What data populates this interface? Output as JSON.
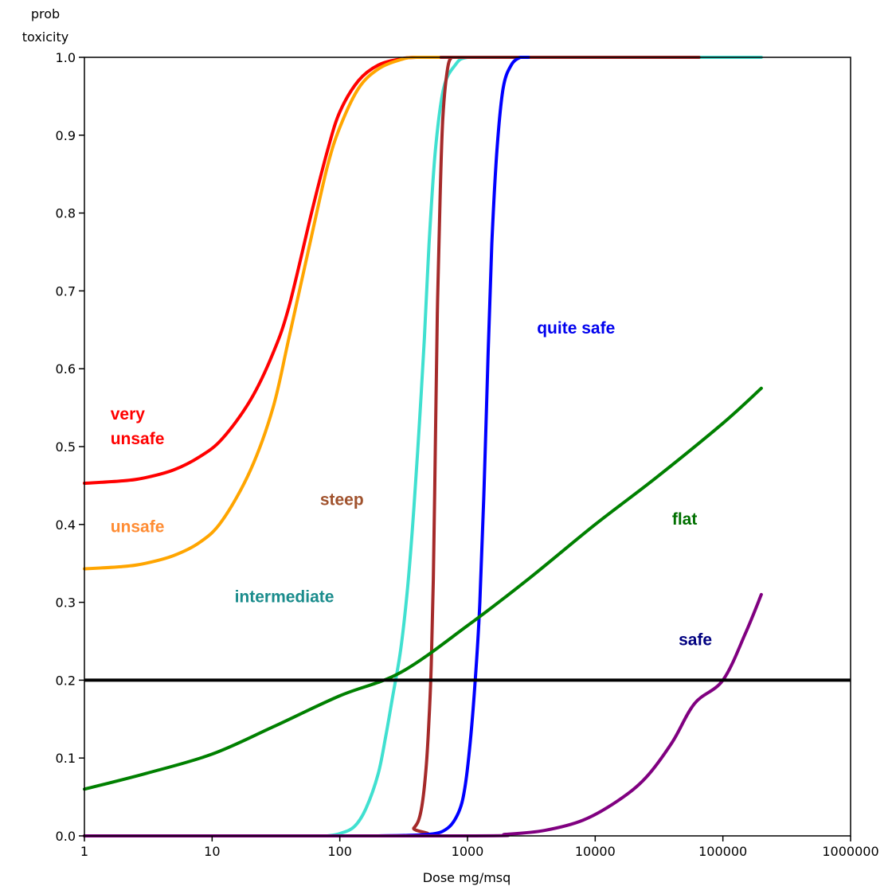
{
  "chart_data": {
    "type": "line",
    "xscale": "log",
    "xlim": [
      1,
      1000000
    ],
    "ylim": [
      0.0,
      1.0
    ],
    "xlabel": "Dose mg/msq",
    "ylabel": [
      "prob",
      "toxicity"
    ],
    "xticks": [
      {
        "value": 1,
        "label": "1"
      },
      {
        "value": 10,
        "label": "10"
      },
      {
        "value": 100,
        "label": "100"
      },
      {
        "value": 1000,
        "label": "1000"
      },
      {
        "value": 10000,
        "label": "10000"
      },
      {
        "value": 100000,
        "label": "100000"
      },
      {
        "value": 1000000,
        "label": "1000000"
      }
    ],
    "yticks": [
      {
        "value": 0.0,
        "label": "0.0"
      },
      {
        "value": 0.1,
        "label": "0.1"
      },
      {
        "value": 0.2,
        "label": "0.2"
      },
      {
        "value": 0.3,
        "label": "0.3"
      },
      {
        "value": 0.4,
        "label": "0.4"
      },
      {
        "value": 0.5,
        "label": "0.5"
      },
      {
        "value": 0.6,
        "label": "0.6"
      },
      {
        "value": 0.7,
        "label": "0.7"
      },
      {
        "value": 0.8,
        "label": "0.8"
      },
      {
        "value": 0.9,
        "label": "0.9"
      },
      {
        "value": 1.0,
        "label": "1.0"
      }
    ],
    "reference_line": {
      "y": 0.2,
      "color": "#000000"
    },
    "grid": false,
    "series": [
      {
        "name": "very unsafe",
        "label_lines": [
          "very",
          "unsafe"
        ],
        "color": "#ff0000",
        "label_color": "#ff0000",
        "label_at": {
          "x": 1.6,
          "y": 0.535
        },
        "points": [
          [
            1,
            0.453
          ],
          [
            2,
            0.456
          ],
          [
            3,
            0.46
          ],
          [
            5,
            0.47
          ],
          [
            8,
            0.487
          ],
          [
            12,
            0.51
          ],
          [
            20,
            0.56
          ],
          [
            30,
            0.62
          ],
          [
            40,
            0.68
          ],
          [
            60,
            0.8
          ],
          [
            80,
            0.88
          ],
          [
            100,
            0.93
          ],
          [
            140,
            0.97
          ],
          [
            200,
            0.99
          ],
          [
            300,
            0.998
          ],
          [
            400,
            1.0
          ],
          [
            700,
            1.0
          ],
          [
            70000,
            1.0
          ]
        ]
      },
      {
        "name": "unsafe",
        "label_lines": [
          "unsafe"
        ],
        "color": "#ffa500",
        "label_color": "#ff8c33",
        "label_at": {
          "x": 1.6,
          "y": 0.39
        },
        "points": [
          [
            1,
            0.343
          ],
          [
            2,
            0.346
          ],
          [
            3,
            0.35
          ],
          [
            5,
            0.36
          ],
          [
            8,
            0.377
          ],
          [
            12,
            0.405
          ],
          [
            20,
            0.47
          ],
          [
            30,
            0.55
          ],
          [
            40,
            0.64
          ],
          [
            60,
            0.77
          ],
          [
            80,
            0.86
          ],
          [
            100,
            0.91
          ],
          [
            140,
            0.96
          ],
          [
            200,
            0.985
          ],
          [
            300,
            0.997
          ],
          [
            400,
            1.0
          ],
          [
            1000,
            1.0
          ]
        ]
      },
      {
        "name": "intermediate",
        "label_lines": [
          "intermediate"
        ],
        "color": "#40e0d0",
        "label_color": "#1a8c8c",
        "label_at": {
          "x": 15,
          "y": 0.3
        },
        "points": [
          [
            80,
            0.0
          ],
          [
            100,
            0.003
          ],
          [
            130,
            0.012
          ],
          [
            160,
            0.035
          ],
          [
            200,
            0.08
          ],
          [
            230,
            0.13
          ],
          [
            260,
            0.18
          ],
          [
            300,
            0.24
          ],
          [
            340,
            0.32
          ],
          [
            380,
            0.42
          ],
          [
            420,
            0.53
          ],
          [
            460,
            0.64
          ],
          [
            500,
            0.76
          ],
          [
            560,
            0.88
          ],
          [
            650,
            0.96
          ],
          [
            800,
            0.99
          ],
          [
            1000,
            1.0
          ],
          [
            2000,
            1.0
          ],
          [
            200000,
            1.0
          ]
        ]
      },
      {
        "name": "steep",
        "label_lines": [
          "steep"
        ],
        "color": "#a52a2a",
        "label_color": "#a0522d",
        "label_at": {
          "x": 70,
          "y": 0.425
        },
        "points": [
          [
            1,
            0.0
          ],
          [
            300,
            0.0
          ],
          [
            380,
            0.01
          ],
          [
            430,
            0.03
          ],
          [
            470,
            0.08
          ],
          [
            500,
            0.15
          ],
          [
            520,
            0.22
          ],
          [
            540,
            0.33
          ],
          [
            560,
            0.5
          ],
          [
            580,
            0.67
          ],
          [
            610,
            0.82
          ],
          [
            640,
            0.92
          ],
          [
            690,
            0.98
          ],
          [
            750,
            1.0
          ],
          [
            900,
            1.0
          ],
          [
            65000,
            1.0
          ]
        ]
      },
      {
        "name": "quite safe",
        "label_lines": [
          "quite safe"
        ],
        "color": "#0000ff",
        "label_color": "#0000ee",
        "label_at": {
          "x": 3500,
          "y": 0.645
        },
        "points": [
          [
            200,
            0.0
          ],
          [
            500,
            0.002
          ],
          [
            700,
            0.01
          ],
          [
            850,
            0.03
          ],
          [
            950,
            0.06
          ],
          [
            1050,
            0.12
          ],
          [
            1150,
            0.2
          ],
          [
            1250,
            0.3
          ],
          [
            1350,
            0.45
          ],
          [
            1450,
            0.62
          ],
          [
            1550,
            0.76
          ],
          [
            1700,
            0.88
          ],
          [
            1900,
            0.96
          ],
          [
            2200,
            0.99
          ],
          [
            2600,
            1.0
          ],
          [
            3000,
            1.0
          ]
        ]
      },
      {
        "name": "flat",
        "label_lines": [
          "flat"
        ],
        "color": "#008000",
        "label_color": "#007000",
        "label_at": {
          "x": 40000,
          "y": 0.4
        },
        "points": [
          [
            1,
            0.06
          ],
          [
            3,
            0.08
          ],
          [
            10,
            0.105
          ],
          [
            30,
            0.14
          ],
          [
            100,
            0.18
          ],
          [
            300,
            0.21
          ],
          [
            1000,
            0.27
          ],
          [
            3000,
            0.33
          ],
          [
            10000,
            0.4
          ],
          [
            30000,
            0.46
          ],
          [
            100000,
            0.53
          ],
          [
            200000,
            0.575
          ]
        ]
      },
      {
        "name": "safe",
        "label_lines": [
          "safe"
        ],
        "color": "#800080",
        "label_color": "#000080",
        "label_at": {
          "x": 45000,
          "y": 0.245
        },
        "points": [
          [
            1,
            0.0
          ],
          [
            1000,
            0.0
          ],
          [
            2000,
            0.002
          ],
          [
            4000,
            0.007
          ],
          [
            8000,
            0.02
          ],
          [
            15000,
            0.045
          ],
          [
            25000,
            0.075
          ],
          [
            40000,
            0.12
          ],
          [
            60000,
            0.17
          ],
          [
            100000,
            0.2
          ],
          [
            150000,
            0.26
          ],
          [
            200000,
            0.31
          ]
        ]
      }
    ]
  }
}
